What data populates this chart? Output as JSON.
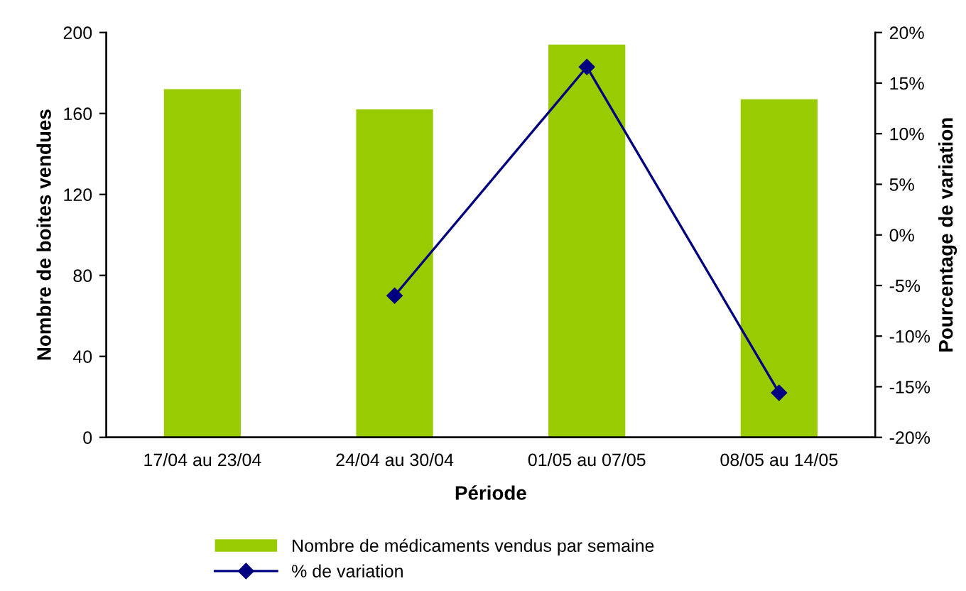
{
  "chart_data": {
    "type": "bar",
    "xlabel": "Période",
    "ylabel": "Nombre de boites vendues",
    "y2label": "Pourcentage de variation",
    "categories": [
      "17/04 au 23/04",
      "24/04 au 30/04",
      "01/05 au 07/05",
      "08/05 au 14/05"
    ],
    "series": [
      {
        "name": "Nombre de médicaments vendus par semaine",
        "color": "#99cc00",
        "values": [
          172,
          162,
          194,
          167
        ]
      },
      {
        "name": "% de variation",
        "type": "line",
        "axis": "y2",
        "color": "#000080",
        "marker": "diamond",
        "values": [
          null,
          -6,
          16.6,
          -15.6
        ]
      }
    ],
    "ylim": [
      0,
      200
    ],
    "yticks": [
      0,
      40,
      80,
      120,
      160,
      200
    ],
    "y2lim": [
      -20,
      20
    ],
    "y2ticks": [
      {
        "value": -20,
        "label": "-20%"
      },
      {
        "value": -15,
        "label": "-15%"
      },
      {
        "value": -10,
        "label": "-10%"
      },
      {
        "value": -5,
        "label": "-5%"
      },
      {
        "value": 0,
        "label": "0%"
      },
      {
        "value": 5,
        "label": "5%"
      },
      {
        "value": 10,
        "label": "10%"
      },
      {
        "value": 15,
        "label": "15%"
      },
      {
        "value": 20,
        "label": "20%"
      }
    ],
    "grid": false,
    "legend": "bottom"
  }
}
